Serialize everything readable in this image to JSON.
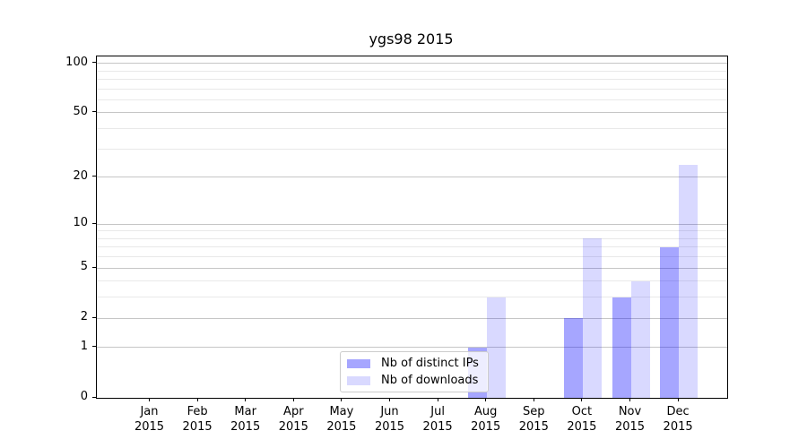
{
  "chart_data": {
    "type": "bar",
    "title": "ygs98 2015",
    "categories": [
      "Jan 2015",
      "Feb 2015",
      "Mar 2015",
      "Apr 2015",
      "May 2015",
      "Jun 2015",
      "Jul 2015",
      "Aug 2015",
      "Sep 2015",
      "Oct 2015",
      "Nov 2015",
      "Dec 2015"
    ],
    "months": [
      "Jan",
      "Feb",
      "Mar",
      "Apr",
      "May",
      "Jun",
      "Jul",
      "Aug",
      "Sep",
      "Oct",
      "Nov",
      "Dec"
    ],
    "year_label": "2015",
    "series": [
      {
        "name": "Nb of distinct IPs",
        "color": "rgba(0,0,255,0.35)",
        "values": [
          0,
          0,
          0,
          0,
          0,
          0,
          0,
          1,
          0,
          2,
          3,
          7
        ]
      },
      {
        "name": "Nb of downloads",
        "color": "rgba(0,0,255,0.15)",
        "values": [
          0,
          0,
          0,
          0,
          0,
          0,
          0,
          3,
          0,
          8,
          4,
          24
        ]
      }
    ],
    "y_axis": {
      "scale": "log10(1+x)",
      "ticks": [
        0,
        1,
        2,
        5,
        10,
        20,
        50,
        100
      ],
      "minor_ticks": [
        3,
        4,
        6,
        7,
        8,
        9,
        30,
        40,
        60,
        70,
        80,
        90
      ],
      "ylim": [
        0,
        110
      ]
    },
    "xlabel": "",
    "ylabel": "",
    "grid": {
      "on": true,
      "major_color": "#c6c6c6",
      "minor_color": "#e9e9e9"
    },
    "legend": {
      "position": "lower center",
      "entries": [
        "Nb of distinct IPs",
        "Nb of downloads"
      ]
    }
  }
}
